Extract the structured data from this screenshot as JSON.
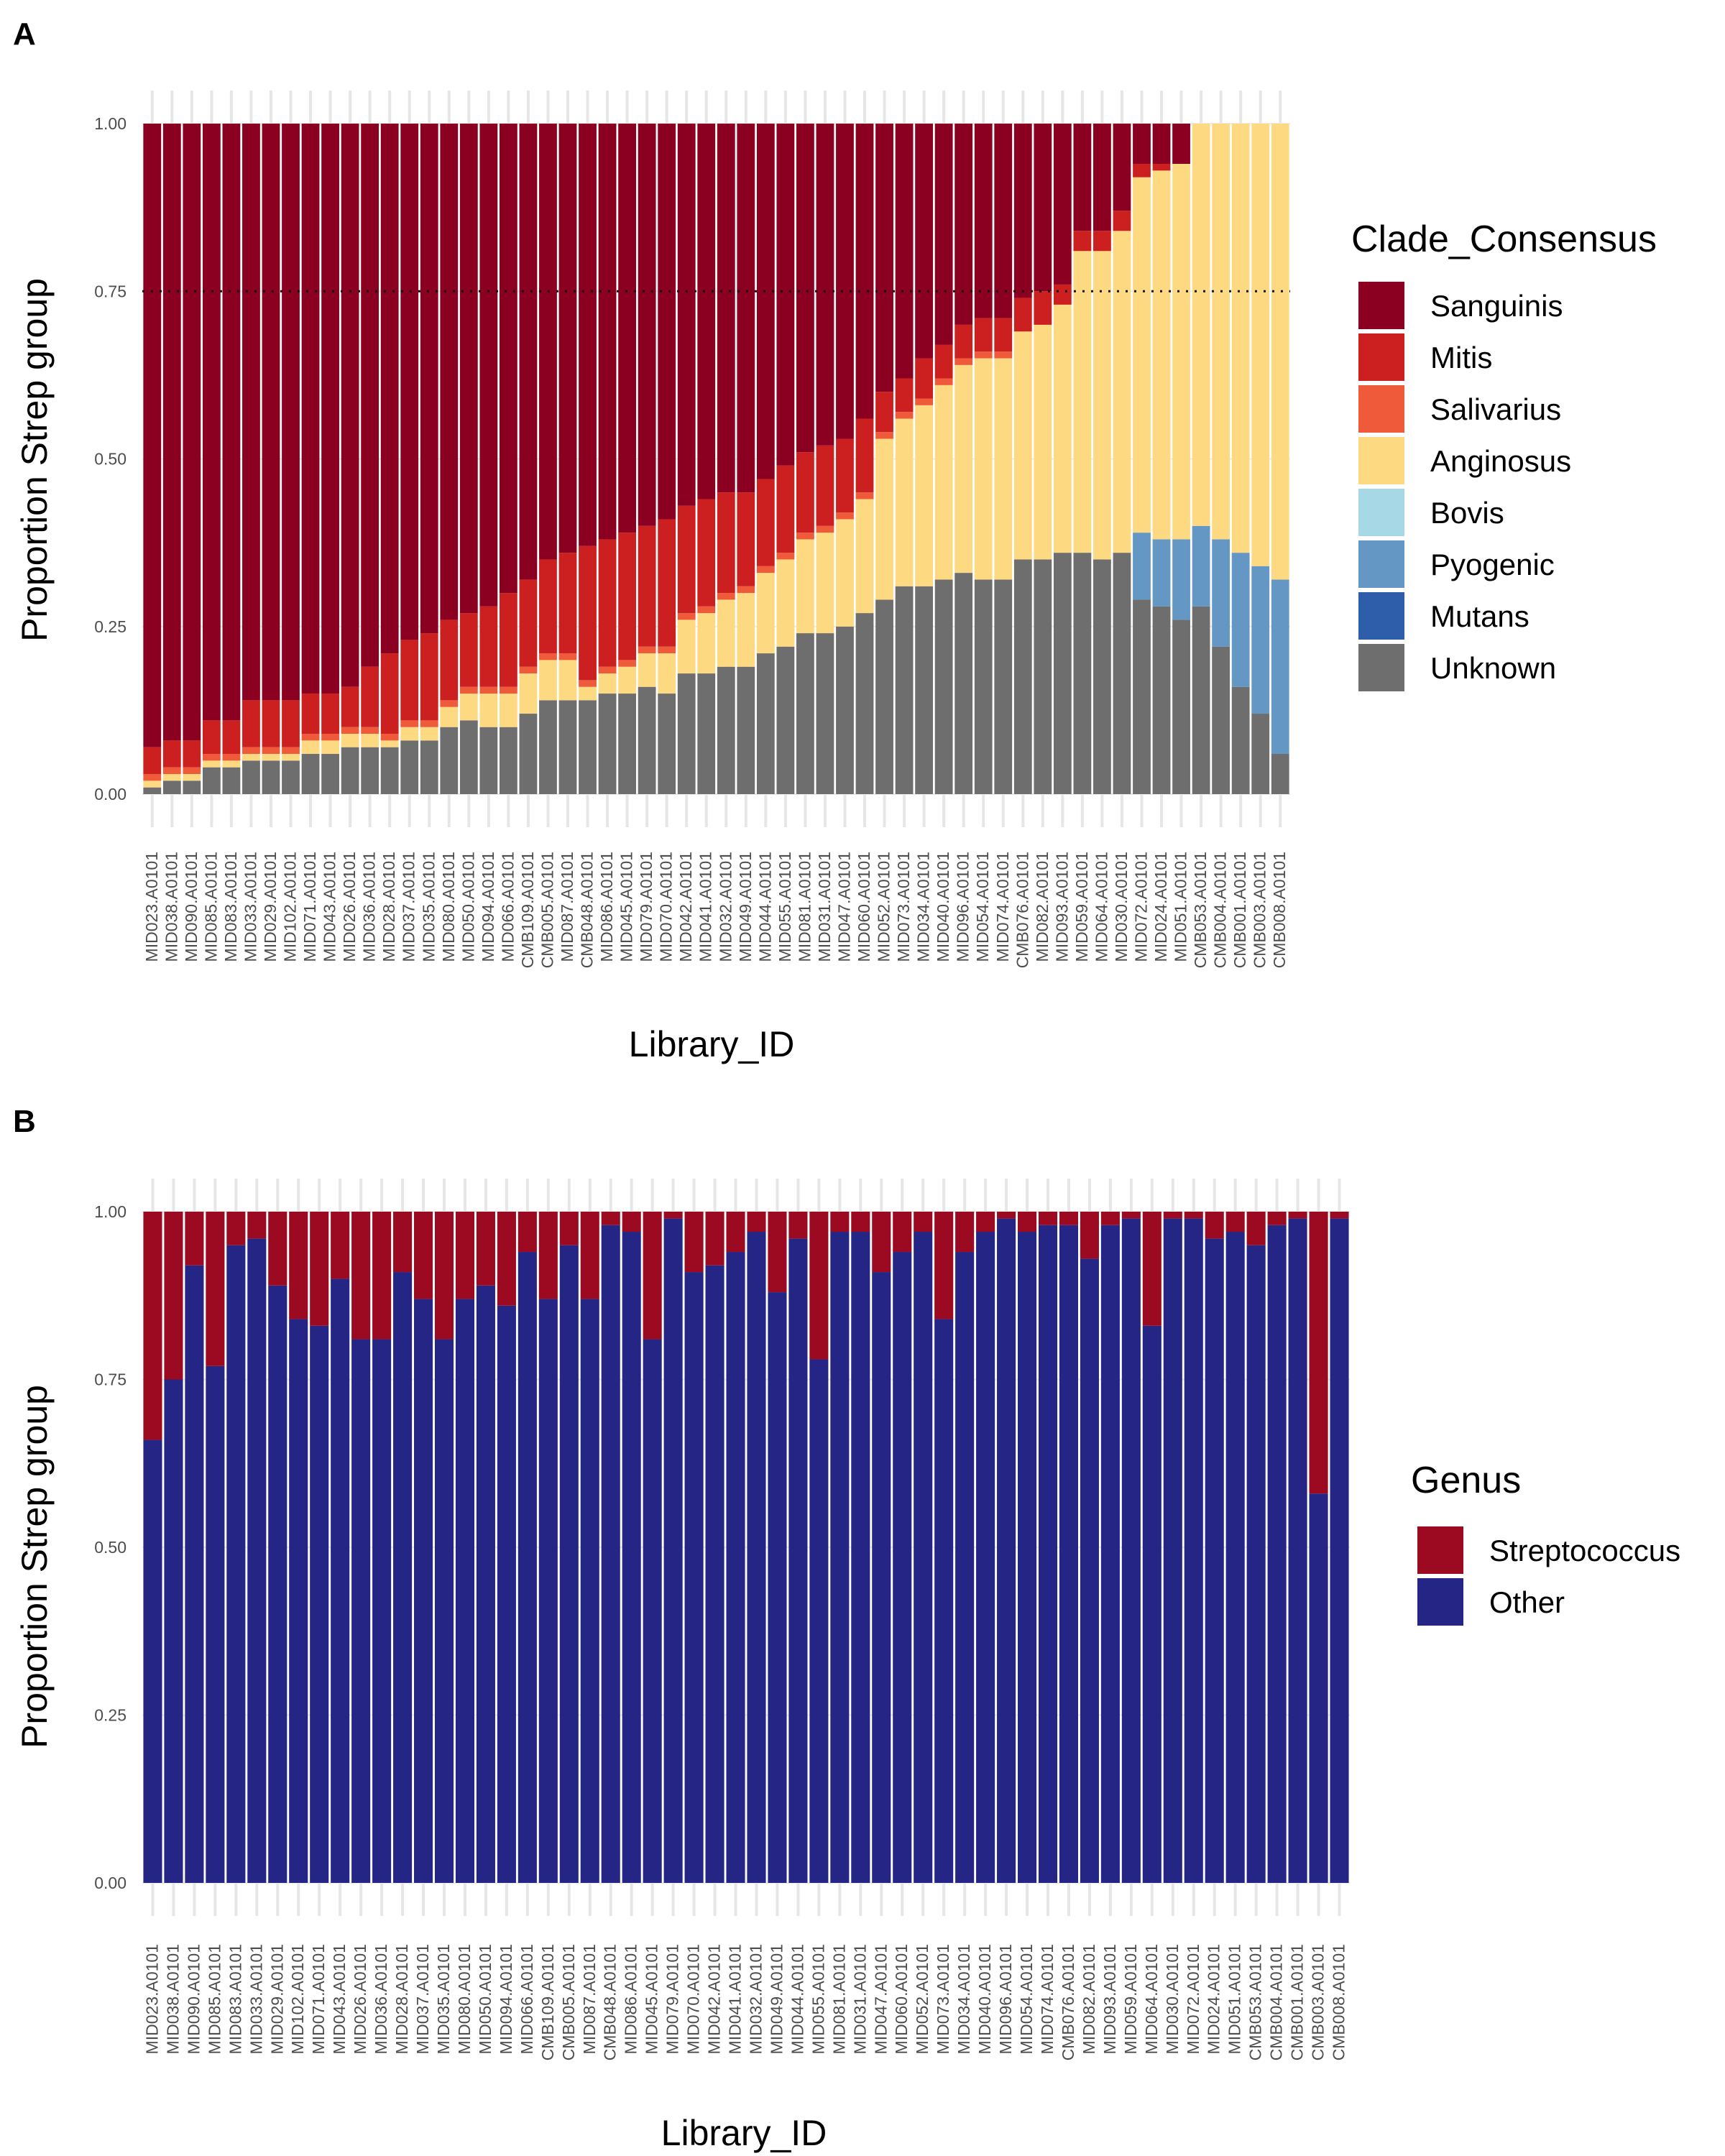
{
  "chart_data": [
    {
      "panel_label": "A",
      "type": "bar",
      "stacked": true,
      "xlabel": "Library_ID",
      "ylabel": "Proportion Strep group",
      "ylim": [
        0,
        1
      ],
      "yticks": [
        "0.00",
        "0.25",
        "0.50",
        "0.75",
        "1.00"
      ],
      "threshold_line": 0.75,
      "legend_title": "Clade_Consensus",
      "legend_position": "right",
      "grid": true,
      "categories": [
        "MID023.A0101",
        "MID038.A0101",
        "MID090.A0101",
        "MID085.A0101",
        "MID083.A0101",
        "MID033.A0101",
        "MID029.A0101",
        "MID102.A0101",
        "MID071.A0101",
        "MID043.A0101",
        "MID026.A0101",
        "MID036.A0101",
        "MID028.A0101",
        "MID037.A0101",
        "MID035.A0101",
        "MID080.A0101",
        "MID050.A0101",
        "MID094.A0101",
        "MID066.A0101",
        "CMB109.A0101",
        "CMB005.A0101",
        "MID087.A0101",
        "CMB048.A0101",
        "MID086.A0101",
        "MID045.A0101",
        "MID079.A0101",
        "MID070.A0101",
        "MID042.A0101",
        "MID041.A0101",
        "MID032.A0101",
        "MID049.A0101",
        "MID044.A0101",
        "MID055.A0101",
        "MID081.A0101",
        "MID031.A0101",
        "MID047.A0101",
        "MID060.A0101",
        "MID052.A0101",
        "MID073.A0101",
        "MID034.A0101",
        "MID040.A0101",
        "MID096.A0101",
        "MID054.A0101",
        "MID074.A0101",
        "CMB076.A0101",
        "MID082.A0101",
        "MID093.A0101",
        "MID059.A0101",
        "MID064.A0101",
        "MID030.A0101",
        "MID072.A0101",
        "MID024.A0101",
        "MID051.A0101",
        "CMB053.A0101",
        "CMB004.A0101",
        "CMB001.A0101",
        "CMB003.A0101",
        "CMB008.A0101"
      ],
      "categories_shown": [
        "MID023.A0101",
        "MID038.A0101",
        "MID090.A0101",
        "MID085.A0101",
        "MID083.A0101",
        "MID033.A0101",
        "MID029.A0101",
        "MID102.A0101",
        "MID071.A0101",
        "MID043.A0101",
        "MID026.A0101",
        "MID036.A0101",
        "MID028.A0101",
        "MID037.A0101",
        "MID035.A0101",
        "MID080.A0101",
        "MID050.A0101",
        "MID094.A0101",
        "MID066.A0101",
        "CMB109.A0101",
        "CMB005.A0101",
        "MID087.A0101",
        "CMB048.A0101",
        "MID086.A0101",
        "MID045.A0101",
        "MID079.A0101",
        "MID070.A0101",
        "MID042.A0101",
        "MID041.A0101",
        "MID032.A0101",
        "MID049.A0101",
        "MID044.A0101",
        "MID055.A0101",
        "MID081.A0101",
        "MID031.A0101",
        "MID047.A0101",
        "MID060.A0101",
        "MID052.A0101",
        "MID073.A0101",
        "MID034.A0101",
        "MID040.A0101",
        "MID096.A0101",
        "MID054.A0101",
        "MID074.A0101",
        "CMB076.A0101",
        "MID082.A0101",
        "MID093.A0101",
        "MID059.A0101",
        "MID064.A0101",
        "MID030.A0101",
        "MID072.A0101",
        "MID024.A0101",
        "MID051.A0101",
        "CMB053.A0101",
        "CMB004.A0101",
        "CMB001.A0101",
        "CMB003.A0101",
        "CMB008.A0101"
      ],
      "series": [
        {
          "name": "Sanguinis",
          "color": "#8B0020",
          "values": [
            0.93,
            0.92,
            0.92,
            0.89,
            0.89,
            0.86,
            0.86,
            0.86,
            0.85,
            0.85,
            0.84,
            0.81,
            0.79,
            0.77,
            0.76,
            0.74,
            0.73,
            0.72,
            0.7,
            0.68,
            0.65,
            0.64,
            0.63,
            0.62,
            0.61,
            0.6,
            0.59,
            0.57,
            0.56,
            0.55,
            0.55,
            0.53,
            0.51,
            0.49,
            0.48,
            0.47,
            0.44,
            0.4,
            0.38,
            0.35,
            0.33,
            0.3,
            0.29,
            0.29,
            0.26,
            0.25,
            0.24,
            0.16,
            0.16,
            0.13,
            0.06,
            0.06,
            0.06,
            0,
            0,
            0,
            0,
            0
          ]
        },
        {
          "name": "Mitis",
          "color": "#CC1F1F",
          "values": [
            0.04,
            0.04,
            0.04,
            0.05,
            0.05,
            0.07,
            0.07,
            0.07,
            0.06,
            0.06,
            0.06,
            0.09,
            0.12,
            0.12,
            0.13,
            0.12,
            0.11,
            0.12,
            0.14,
            0.13,
            0.14,
            0.15,
            0.2,
            0.19,
            0.19,
            0.18,
            0.19,
            0.16,
            0.16,
            0.15,
            0.14,
            0.13,
            0.13,
            0.12,
            0.12,
            0.11,
            0.11,
            0.06,
            0.05,
            0.06,
            0.05,
            0.05,
            0.05,
            0.05,
            0.05,
            0.05,
            0.03,
            0.03,
            0.03,
            0.03,
            0.02,
            0.01,
            0,
            0,
            0,
            0,
            0,
            0
          ]
        },
        {
          "name": "Salivarius",
          "color": "#EE5A3A",
          "values": [
            0.01,
            0.01,
            0.01,
            0.01,
            0.01,
            0.01,
            0.01,
            0.01,
            0.01,
            0.01,
            0.01,
            0.01,
            0.01,
            0.01,
            0.01,
            0.01,
            0.01,
            0.01,
            0.01,
            0.01,
            0.01,
            0.01,
            0.01,
            0.01,
            0.01,
            0.01,
            0.01,
            0.01,
            0.01,
            0.01,
            0.01,
            0.01,
            0.01,
            0.01,
            0.01,
            0.01,
            0.01,
            0.01,
            0.01,
            0.01,
            0.01,
            0.01,
            0.01,
            0.01,
            0,
            0,
            0,
            0,
            0,
            0,
            0,
            0,
            0,
            0,
            0,
            0,
            0,
            0
          ]
        },
        {
          "name": "Anginosus",
          "color": "#FDDA82",
          "values": [
            0.01,
            0.01,
            0.01,
            0.01,
            0.01,
            0.01,
            0.01,
            0.01,
            0.02,
            0.02,
            0.02,
            0.02,
            0.01,
            0.02,
            0.02,
            0.03,
            0.04,
            0.05,
            0.05,
            0.06,
            0.06,
            0.06,
            0.02,
            0.03,
            0.04,
            0.05,
            0.06,
            0.08,
            0.09,
            0.1,
            0.11,
            0.12,
            0.13,
            0.14,
            0.15,
            0.16,
            0.17,
            0.24,
            0.25,
            0.27,
            0.29,
            0.31,
            0.33,
            0.33,
            0.34,
            0.35,
            0.37,
            0.45,
            0.46,
            0.48,
            0.53,
            0.55,
            0.56,
            0.6,
            0.62,
            0.64,
            0.66,
            0.68
          ]
        },
        {
          "name": "Bovis",
          "color": "#A6D8E6",
          "values": [
            0,
            0,
            0,
            0,
            0,
            0,
            0,
            0,
            0,
            0,
            0,
            0,
            0,
            0,
            0,
            0,
            0,
            0,
            0,
            0,
            0,
            0,
            0,
            0,
            0,
            0,
            0,
            0,
            0,
            0,
            0,
            0,
            0,
            0,
            0,
            0,
            0,
            0,
            0,
            0,
            0,
            0,
            0,
            0,
            0,
            0,
            0,
            0,
            0,
            0,
            0,
            0,
            0,
            0,
            0,
            0,
            0,
            0
          ]
        },
        {
          "name": "Pyogenic",
          "color": "#6497C4",
          "values": [
            0,
            0,
            0,
            0,
            0,
            0,
            0,
            0,
            0,
            0,
            0,
            0,
            0,
            0,
            0,
            0,
            0,
            0,
            0,
            0,
            0,
            0,
            0,
            0,
            0,
            0,
            0,
            0,
            0,
            0,
            0,
            0,
            0,
            0,
            0,
            0,
            0,
            0,
            0,
            0,
            0,
            0,
            0,
            0,
            0,
            0,
            0,
            0,
            0,
            0,
            0.1,
            0.1,
            0.12,
            0.12,
            0.16,
            0.2,
            0.22,
            0.26
          ]
        },
        {
          "name": "Mutans",
          "color": "#2E5EAA",
          "values": [
            0,
            0,
            0,
            0,
            0,
            0,
            0,
            0,
            0,
            0,
            0,
            0,
            0,
            0,
            0,
            0,
            0,
            0,
            0,
            0,
            0,
            0,
            0,
            0,
            0,
            0,
            0,
            0,
            0,
            0,
            0,
            0,
            0,
            0,
            0,
            0,
            0,
            0,
            0,
            0,
            0,
            0,
            0,
            0,
            0,
            0,
            0,
            0,
            0,
            0,
            0,
            0,
            0,
            0,
            0,
            0,
            0,
            0
          ]
        },
        {
          "name": "Unknown",
          "color": "#6E6E6E",
          "values": [
            0.01,
            0.02,
            0.02,
            0.04,
            0.04,
            0.05,
            0.05,
            0.05,
            0.06,
            0.06,
            0.07,
            0.07,
            0.07,
            0.08,
            0.08,
            0.1,
            0.11,
            0.1,
            0.1,
            0.12,
            0.14,
            0.14,
            0.14,
            0.15,
            0.15,
            0.16,
            0.15,
            0.18,
            0.18,
            0.19,
            0.19,
            0.21,
            0.22,
            0.24,
            0.24,
            0.25,
            0.27,
            0.29,
            0.31,
            0.31,
            0.32,
            0.33,
            0.32,
            0.32,
            0.35,
            0.35,
            0.36,
            0.36,
            0.35,
            0.36,
            0.29,
            0.28,
            0.26,
            0.28,
            0.22,
            0.16,
            0.12,
            0.06
          ]
        }
      ]
    },
    {
      "panel_label": "B",
      "type": "bar",
      "stacked": true,
      "xlabel": "Library_ID",
      "ylabel": "Proportion Strep group",
      "ylim": [
        0,
        1
      ],
      "yticks": [
        "0.00",
        "0.25",
        "0.50",
        "0.75",
        "1.00"
      ],
      "legend_title": "Genus",
      "legend_position": "right",
      "grid": true,
      "categories": [
        "MID023.A0101",
        "MID038.A0101",
        "MID090.A0101",
        "MID085.A0101",
        "MID083.A0101",
        "MID033.A0101",
        "MID029.A0101",
        "MID102.A0101",
        "MID071.A0101",
        "MID043.A0101",
        "MID026.A0101",
        "MID036.A0101",
        "MID028.A0101",
        "MID037.A0101",
        "MID035.A0101",
        "MID080.A0101",
        "MID050.A0101",
        "MID094.A0101",
        "MID066.A0101",
        "CMB109.A0101",
        "CMB005.A0101",
        "MID087.A0101",
        "CMB048.A0101",
        "MID086.A0101",
        "MID045.A0101",
        "MID079.A0101",
        "MID070.A0101",
        "MID042.A0101",
        "MID041.A0101",
        "MID032.A0101",
        "MID049.A0101",
        "MID044.A0101",
        "MID055.A0101",
        "MID081.A0101",
        "MID031.A0101",
        "MID047.A0101",
        "MID060.A0101",
        "MID052.A0101",
        "MID073.A0101",
        "MID034.A0101",
        "MID040.A0101",
        "MID096.A0101",
        "MID054.A0101",
        "MID074.A0101",
        "CMB076.A0101",
        "MID082.A0101",
        "MID093.A0101",
        "MID059.A0101",
        "MID064.A0101",
        "MID030.A0101",
        "MID072.A0101",
        "MID024.A0101",
        "MID051.A0101",
        "CMB053.A0101",
        "CMB004.A0101",
        "CMB001.A0101",
        "CMB003.A0101",
        "CMB008.A0101"
      ],
      "series": [
        {
          "name": "Streptococcus",
          "color": "#9B0A20",
          "values": [
            0.34,
            0.25,
            0.08,
            0.23,
            0.05,
            0.04,
            0.11,
            0.16,
            0.17,
            0.1,
            0.19,
            0.19,
            0.09,
            0.13,
            0.19,
            0.13,
            0.11,
            0.14,
            0.06,
            0.13,
            0.05,
            0.13,
            0.02,
            0.03,
            0.19,
            0.01,
            0.09,
            0.08,
            0.06,
            0.03,
            0.12,
            0.04,
            0.22,
            0.03,
            0.03,
            0.09,
            0.06,
            0.03,
            0.16,
            0.06,
            0.03,
            0.01,
            0.03,
            0.02,
            0.02,
            0.07,
            0.02,
            0.01,
            0.17,
            0.01,
            0.01,
            0.04,
            0.03,
            0.05,
            0.02,
            0.01,
            0.42,
            0.01
          ]
        },
        {
          "name": "Other",
          "color": "#252585",
          "values": [
            0.66,
            0.75,
            0.92,
            0.77,
            0.95,
            0.96,
            0.89,
            0.84,
            0.83,
            0.9,
            0.81,
            0.81,
            0.91,
            0.87,
            0.81,
            0.87,
            0.89,
            0.86,
            0.94,
            0.87,
            0.95,
            0.87,
            0.98,
            0.97,
            0.81,
            0.99,
            0.91,
            0.92,
            0.94,
            0.97,
            0.88,
            0.96,
            0.78,
            0.97,
            0.97,
            0.91,
            0.94,
            0.97,
            0.84,
            0.94,
            0.97,
            0.99,
            0.97,
            0.98,
            0.98,
            0.93,
            0.98,
            0.99,
            0.83,
            0.99,
            0.99,
            0.96,
            0.97,
            0.95,
            0.98,
            0.99,
            0.58,
            0.99
          ]
        }
      ]
    }
  ]
}
